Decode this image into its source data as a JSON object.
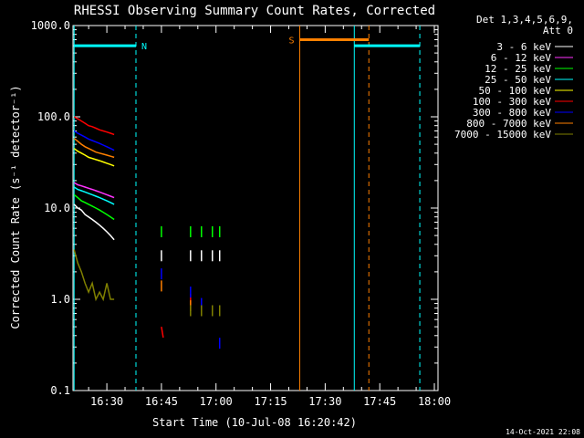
{
  "chart_data": {
    "type": "line",
    "title": "RHESSI Observing Summary Count Rates, Corrected",
    "xlabel": "Start Time (10-Jul-08 16:20:42)",
    "ylabel": "Corrected Count Rate (s⁻¹ detector⁻¹)",
    "y_scale": "log",
    "ylim": [
      0.1,
      1000
    ],
    "xlim": [
      "16:20:42",
      "18:01:00"
    ],
    "y_ticks": [
      "0.1",
      "1.0",
      "10.0",
      "100.0",
      "1000.0"
    ],
    "y_tick_values": [
      0.1,
      1,
      10,
      100,
      1000
    ],
    "x_ticks": [
      "16:30",
      "16:45",
      "17:00",
      "17:15",
      "17:30",
      "17:45",
      "18:00"
    ],
    "x_tick_values": [
      "16:30",
      "16:45",
      "17:00",
      "17:15",
      "17:30",
      "17:45",
      "18:00"
    ],
    "legend_header": [
      "Det 1,3,4,5,6,9,",
      "Att 0"
    ],
    "legend_position": "right",
    "series": [
      {
        "name": "3 - 6 keV",
        "color": "#ffffff",
        "segments": [
          {
            "x": [
              "16:21",
              "16:22",
              "16:23",
              "16:24",
              "16:25",
              "16:26",
              "16:27",
              "16:28",
              "16:29",
              "16:30",
              "16:31",
              "16:32"
            ],
            "y": [
              11,
              10,
              9.5,
              8.5,
              8,
              7.5,
              7,
              6.5,
              6,
              5.5,
              5,
              4.5
            ]
          },
          {
            "x": [
              "16:45"
            ],
            "y": [
              3.0
            ]
          },
          {
            "x": [
              "16:53"
            ],
            "y": [
              3.0
            ]
          },
          {
            "x": [
              "16:56"
            ],
            "y": [
              3.0
            ]
          },
          {
            "x": [
              "16:59"
            ],
            "y": [
              3.0
            ]
          },
          {
            "x": [
              "17:01"
            ],
            "y": [
              3.0
            ]
          }
        ]
      },
      {
        "name": "6 - 12 keV",
        "color": "#ff33ff",
        "segments": [
          {
            "x": [
              "16:21",
              "16:22",
              "16:23",
              "16:24",
              "16:25",
              "16:26",
              "16:27",
              "16:28",
              "16:29",
              "16:30",
              "16:31",
              "16:32"
            ],
            "y": [
              19,
              18,
              17.5,
              17,
              16.5,
              16,
              15.5,
              15,
              14.5,
              14,
              13.5,
              13
            ]
          }
        ]
      },
      {
        "name": "12 - 25 keV",
        "color": "#00ff00",
        "segments": [
          {
            "x": [
              "16:21",
              "16:22",
              "16:23",
              "16:24",
              "16:25",
              "16:26",
              "16:27",
              "16:28",
              "16:29",
              "16:30",
              "16:31",
              "16:32"
            ],
            "y": [
              14,
              13,
              12,
              11.5,
              11,
              10.5,
              10,
              9.5,
              9,
              8.5,
              8,
              7.5
            ]
          },
          {
            "x": [
              "16:45"
            ],
            "y": [
              5.5
            ]
          },
          {
            "x": [
              "16:53"
            ],
            "y": [
              5.5
            ]
          },
          {
            "x": [
              "16:56"
            ],
            "y": [
              5.5
            ]
          },
          {
            "x": [
              "16:59"
            ],
            "y": [
              5.5
            ]
          },
          {
            "x": [
              "17:01"
            ],
            "y": [
              5.5
            ]
          }
        ]
      },
      {
        "name": "25 - 50 keV",
        "color": "#00ffff",
        "segments": [
          {
            "x": [
              "16:21",
              "16:22",
              "16:23",
              "16:24",
              "16:25",
              "16:26",
              "16:27",
              "16:28",
              "16:29",
              "16:30",
              "16:31",
              "16:32"
            ],
            "y": [
              17,
              16,
              15.5,
              15,
              14.5,
              14,
              13.5,
              13,
              12.5,
              12,
              11.5,
              11
            ]
          }
        ]
      },
      {
        "name": "50 - 100 keV",
        "color": "#ffff00",
        "segments": [
          {
            "x": [
              "16:21",
              "16:22",
              "16:23",
              "16:24",
              "16:25",
              "16:26",
              "16:27",
              "16:28",
              "16:29",
              "16:30",
              "16:31",
              "16:32"
            ],
            "y": [
              45,
              42,
              40,
              38,
              36,
              35,
              34,
              33,
              32,
              31,
              30,
              29
            ]
          }
        ]
      },
      {
        "name": "100 - 300 keV",
        "color": "#ff0000",
        "segments": [
          {
            "x": [
              "16:21",
              "16:22",
              "16:23",
              "16:24",
              "16:25",
              "16:26",
              "16:27",
              "16:28",
              "16:29",
              "16:30",
              "16:31",
              "16:32"
            ],
            "y": [
              100,
              95,
              90,
              85,
              80,
              78,
              75,
              72,
              70,
              68,
              66,
              64
            ]
          },
          {
            "x": [
              "16:45",
              "16:45.5"
            ],
            "y": [
              0.5,
              0.38
            ]
          },
          {
            "x": [
              "16:53"
            ],
            "y": [
              1.0
            ]
          }
        ]
      },
      {
        "name": "300 - 800 keV",
        "color": "#0000ff",
        "segments": [
          {
            "x": [
              "16:21",
              "16:22",
              "16:23",
              "16:24",
              "16:25",
              "16:26",
              "16:27",
              "16:28",
              "16:29",
              "16:30",
              "16:31",
              "16:32"
            ],
            "y": [
              70,
              66,
              63,
              60,
              57,
              55,
              53,
              51,
              49,
              47,
              45,
              43
            ]
          },
          {
            "x": [
              "16:45"
            ],
            "y": [
              1.9
            ]
          },
          {
            "x": [
              "16:53"
            ],
            "y": [
              1.2
            ]
          },
          {
            "x": [
              "16:56"
            ],
            "y": [
              0.9
            ]
          },
          {
            "x": [
              "17:01"
            ],
            "y": [
              0.33
            ]
          }
        ]
      },
      {
        "name": "800 - 7000 keV",
        "color": "#ff8000",
        "segments": [
          {
            "x": [
              "16:21",
              "16:22",
              "16:23",
              "16:24",
              "16:25",
              "16:26",
              "16:27",
              "16:28",
              "16:29",
              "16:30",
              "16:31",
              "16:32"
            ],
            "y": [
              58,
              54,
              50,
              47,
              45,
              43,
              41,
              40,
              39,
              38,
              37,
              36
            ]
          },
          {
            "x": [
              "16:45"
            ],
            "y": [
              1.4
            ]
          },
          {
            "x": [
              "16:53"
            ],
            "y": [
              0.85
            ]
          }
        ]
      },
      {
        "name": "7000 - 15000 keV",
        "color": "#808000",
        "segments": [
          {
            "x": [
              "16:21",
              "16:22",
              "16:23",
              "16:24",
              "16:25",
              "16:26",
              "16:27",
              "16:28",
              "16:29",
              "16:30",
              "16:31",
              "16:32"
            ],
            "y": [
              3.5,
              2.5,
              2.0,
              1.5,
              1.2,
              1.5,
              1.0,
              1.2,
              1.0,
              1.5,
              1.0,
              1.0
            ]
          },
          {
            "x": [
              "16:53"
            ],
            "y": [
              0.75
            ]
          },
          {
            "x": [
              "16:56"
            ],
            "y": [
              0.75
            ]
          },
          {
            "x": [
              "16:59"
            ],
            "y": [
              0.75
            ]
          },
          {
            "x": [
              "17:01"
            ],
            "y": [
              0.75
            ]
          }
        ]
      }
    ],
    "annotations": [
      {
        "kind": "vline",
        "x": "16:21",
        "color": "#00ffff",
        "style": "solid"
      },
      {
        "kind": "vline",
        "x": "16:38",
        "color": "#00ffff",
        "style": "dashed"
      },
      {
        "kind": "vline",
        "x": "17:23",
        "color": "#ff8000",
        "style": "solid"
      },
      {
        "kind": "vline",
        "x": "17:42",
        "color": "#ff8000",
        "style": "dashed"
      },
      {
        "kind": "vline",
        "x": "17:38",
        "color": "#00ffff",
        "style": "solid"
      },
      {
        "kind": "vline",
        "x": "17:56",
        "color": "#00ffff",
        "style": "dashed"
      },
      {
        "kind": "bar",
        "x0": "16:21",
        "x1": "16:38",
        "y": 600,
        "color": "#00ffff",
        "label": ""
      },
      {
        "kind": "bar",
        "x0": "17:38",
        "x1": "17:56",
        "y": 600,
        "color": "#00ffff",
        "label": ""
      },
      {
        "kind": "bar",
        "x0": "17:23",
        "x1": "17:42",
        "y": 700,
        "color": "#ff8000",
        "label": ""
      },
      {
        "kind": "text",
        "x": "16:38",
        "y": 600,
        "text": "N",
        "color": "#00ffff"
      },
      {
        "kind": "text",
        "x": "17:23",
        "y": 700,
        "text": "S",
        "color": "#ff8000"
      }
    ]
  },
  "footer_timestamp": "14-Oct-2021 22:08"
}
